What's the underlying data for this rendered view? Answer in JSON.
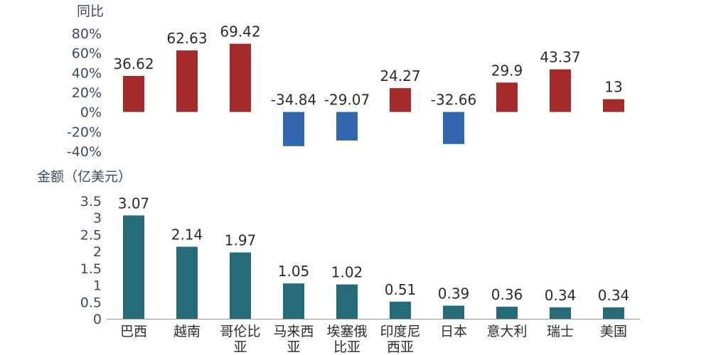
{
  "chart_data": [
    {
      "type": "bar",
      "ylabel": "同比",
      "categories": [
        "巴西",
        "越南",
        "哥伦比亚",
        "马来西亚",
        "埃塞俄比亚",
        "印度尼西亚",
        "日本",
        "意大利",
        "瑞士",
        "美国"
      ],
      "values": [
        36.62,
        62.63,
        69.42,
        -34.84,
        -29.07,
        24.27,
        -32.66,
        29.9,
        43.37,
        13
      ],
      "data_labels": [
        "36.62",
        "62.63",
        "69.42",
        "-34.84",
        "-29.07",
        "24.27",
        "-32.66",
        "29.9",
        "43.37",
        "13"
      ],
      "ylim": [
        -40,
        80
      ],
      "yticks": [
        "80%",
        "60%",
        "40%",
        "20%",
        "0%",
        "-20%",
        "-40%"
      ],
      "colors": {
        "positive": "#A52A2A",
        "negative": "#3366B0"
      },
      "grid": false
    },
    {
      "type": "bar",
      "ylabel": "金额（亿美元）",
      "categories": [
        "巴西",
        "越南",
        "哥伦比亚",
        "马来西亚",
        "埃塞俄比亚",
        "印度尼西亚",
        "日本",
        "意大利",
        "瑞士",
        "美国"
      ],
      "category_labels": [
        [
          "巴西"
        ],
        [
          "越南"
        ],
        [
          "哥伦比",
          "亚"
        ],
        [
          "马来西",
          "亚"
        ],
        [
          "埃塞俄",
          "比亚"
        ],
        [
          "印度尼",
          "西亚"
        ],
        [
          "日本"
        ],
        [
          "意大利"
        ],
        [
          "瑞士"
        ],
        [
          "美国"
        ]
      ],
      "values": [
        3.07,
        2.14,
        1.97,
        1.05,
        1.02,
        0.51,
        0.39,
        0.36,
        0.34,
        0.34
      ],
      "data_labels": [
        "3.07",
        "2.14",
        "1.97",
        "1.05",
        "1.02",
        "0.51",
        "0.39",
        "0.36",
        "0.34",
        "0.34"
      ],
      "ylim": [
        0,
        3.5
      ],
      "yticks": [
        "3.5",
        "3",
        "2.5",
        "2",
        "1.5",
        "1",
        "0.5",
        "0"
      ],
      "colors": {
        "bar": "#266B7A",
        "axis": "#999999"
      },
      "grid": false
    }
  ]
}
